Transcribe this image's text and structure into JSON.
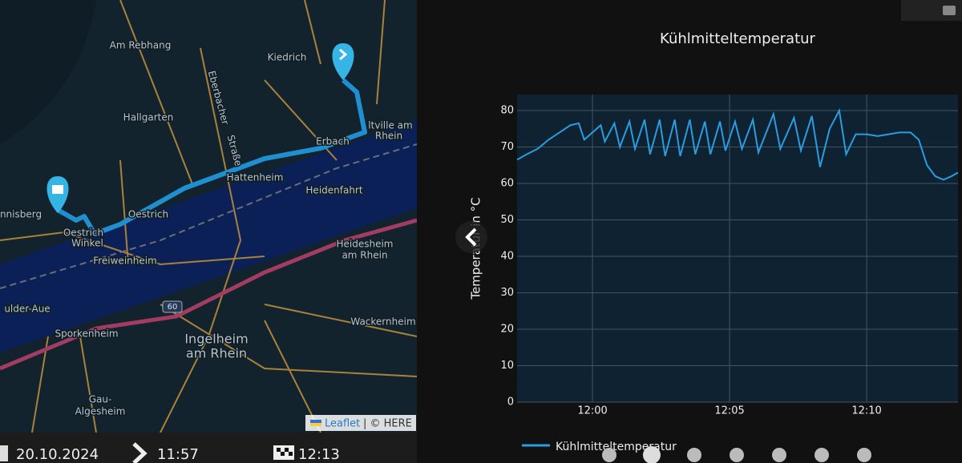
{
  "map": {
    "labels": [
      "Am Rebhang",
      "Kiedrich",
      "Hallgarten",
      "Eberbacher",
      "Straße",
      "Erbach",
      "ltville am",
      "Rhein",
      "Hattenheim",
      "Heidenfahrt",
      "Oestrich",
      "Oestrich",
      "Winkel",
      "nnisberg",
      "Freiweinheim",
      "Heidesheim",
      "am Rhein",
      "ulder-Aue",
      "Sporkenheim",
      "Ingelheim",
      "am Rhein",
      "Wackernheim",
      "Gau-",
      "Algesheim",
      "60"
    ],
    "attribution": {
      "link": "Leaflet",
      "text": "| © HERE"
    }
  },
  "footer": {
    "date": "20.10.2024",
    "start": "11:57",
    "end": "12:13"
  },
  "chart_data": {
    "type": "line",
    "title": "Kühlmitteltemperatur",
    "y_label": "Temperatur in °C",
    "x": [
      -2.75,
      -2.4,
      -2.0,
      -1.6,
      -1.2,
      -0.8,
      -0.5,
      -0.3,
      0.0,
      0.3,
      0.45,
      0.8,
      1.0,
      1.35,
      1.55,
      1.9,
      2.1,
      2.45,
      2.65,
      3.0,
      3.2,
      3.55,
      3.75,
      4.1,
      4.3,
      4.65,
      4.85,
      5.2,
      5.45,
      5.85,
      6.05,
      6.6,
      6.85,
      7.35,
      7.6,
      8.0,
      8.3,
      8.65,
      9.0,
      9.25,
      9.6,
      10.0,
      10.4,
      10.8,
      11.2,
      11.6,
      11.9,
      12.2,
      12.5,
      12.8,
      13.1,
      13.33
    ],
    "series": [
      {
        "name": "Kühlmitteltemperatur",
        "color": "#2a9de0",
        "values": [
          66.5,
          68,
          69.5,
          72,
          74,
          76,
          76.5,
          72,
          74,
          76,
          71.5,
          76.5,
          70,
          77,
          69.5,
          77.5,
          68,
          77.5,
          67.5,
          77.5,
          67.5,
          77.5,
          68,
          77,
          68,
          77,
          69,
          77,
          69.5,
          77.5,
          68.5,
          79,
          69.5,
          78,
          69,
          78.5,
          64.5,
          75,
          80,
          68,
          73.5,
          73.5,
          73,
          73.5,
          74,
          74,
          72,
          65,
          62,
          61,
          62,
          63
        ]
      }
    ],
    "xlim": [
      -2.75,
      13.33
    ],
    "ylim": [
      0,
      84.4
    ],
    "xticks": [
      {
        "value": 0,
        "label": "12:00"
      },
      {
        "value": 5,
        "label": "12:05"
      },
      {
        "value": 10,
        "label": "12:10"
      }
    ],
    "yticks": [
      0,
      10,
      20,
      30,
      40,
      50,
      60,
      70,
      80
    ],
    "grid": true,
    "legend": "bottom-left"
  }
}
